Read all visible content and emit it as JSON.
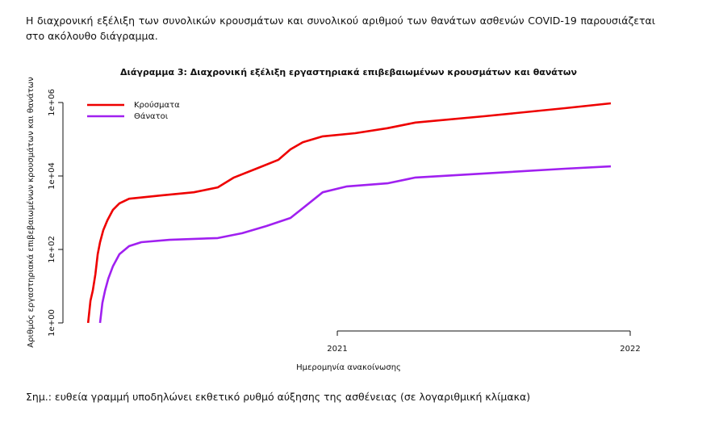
{
  "intro": "Η διαχρονική εξέλιξη των συνολικών κρουσμάτων και συνολικού αριθμού των θανάτων ασθενών COVID-19 παρουσιάζεται στο ακόλουθο διάγραμμα.",
  "chart_data": {
    "type": "line",
    "title": "Διάγραμμα 3: Διαχρονική εξέλιξη εργαστηριακά επιβεβαιωμένων κρουσμάτων και θανάτων",
    "x_label": "Ημερομηνία ανακοίνωσης",
    "y_label": "Αριθμός εργαστηριακά επιβεβαιωμένων κρουσμάτων και θανάτων",
    "y_log": true,
    "legend": "topleft",
    "xlim": [
      2020.11,
      2022
    ],
    "xticks": [
      2021,
      2022
    ],
    "ylim": [
      1,
      1000000
    ],
    "yticks": [
      {
        "value": 1,
        "label": "1e+00"
      },
      {
        "value": 100,
        "label": "1e+02"
      },
      {
        "value": 10000,
        "label": "1e+04"
      },
      {
        "value": 1000000,
        "label": "1e+06"
      }
    ],
    "series": [
      {
        "name": "Κρούσματα",
        "color": "#ee0000",
        "x": [
          2020.149,
          2020.157,
          2020.165,
          2020.174,
          2020.182,
          2020.19,
          2020.201,
          2020.215,
          2020.234,
          2020.256,
          2020.289,
          2020.399,
          2020.51,
          2020.592,
          2020.647,
          2020.73,
          2020.799,
          2020.84,
          2020.882,
          2020.95,
          2021.061,
          2021.171,
          2021.267,
          2021.501,
          2021.777,
          2021.934
        ],
        "values": [
          1,
          4,
          7.6,
          21,
          74,
          158,
          336,
          620,
          1200,
          1800,
          2400,
          2950,
          3600,
          4900,
          9100,
          16600,
          27600,
          53000,
          83000,
          120000,
          146000,
          200000,
          285000,
          423000,
          700000,
          950000
        ]
      },
      {
        "name": "Θάνατοι",
        "color": "#a020f0",
        "x": [
          2020.19,
          2020.198,
          2020.207,
          2020.218,
          2020.234,
          2020.256,
          2020.289,
          2020.331,
          2020.427,
          2020.592,
          2020.675,
          2020.758,
          2020.84,
          2020.895,
          2020.95,
          2021.033,
          2021.171,
          2021.267,
          2021.501,
          2021.777,
          2021.934
        ],
        "values": [
          1,
          3.5,
          7.6,
          16,
          35,
          74,
          123,
          158,
          183,
          204,
          277,
          434,
          720,
          1600,
          3600,
          5200,
          6300,
          9100,
          11700,
          15800,
          18300
        ]
      }
    ]
  },
  "note": "Σημ.: ευθεία γραμμή υποδηλώνει εκθετικό ρυθμό αύξησης της ασθένειας (σε λογαριθμική κλίμακα)"
}
